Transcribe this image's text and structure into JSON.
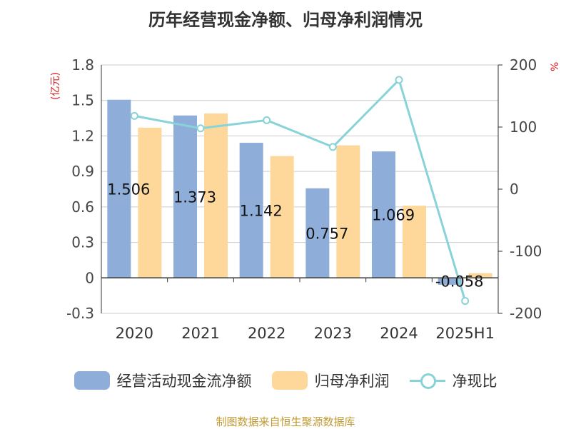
{
  "title": "历年经营现金净额、归母净利润情况",
  "source": "制图数据来自恒生聚源数据库",
  "colors": {
    "cashflow": "#8eaed9",
    "profit": "#fdd89a",
    "ratio": "#88d3d9",
    "unit": "#e0191d",
    "source": "#c09a32"
  },
  "chart_data": {
    "type": "bar",
    "categories": [
      "2020",
      "2021",
      "2022",
      "2023",
      "2024",
      "2025H1"
    ],
    "y_left": {
      "unit": "(亿元)",
      "range": [
        -0.3,
        1.8
      ],
      "ticks": [
        "1.8",
        "1.5",
        "1.2",
        "0.9",
        "0.6",
        "0.3",
        "0",
        "-0.3"
      ]
    },
    "y_right": {
      "unit": "%",
      "range": [
        -200,
        200
      ],
      "ticks": [
        "200",
        "100",
        "0",
        "-100",
        "-200"
      ]
    },
    "series": [
      {
        "name": "经营活动现金流净额",
        "type": "bar",
        "axis": "left",
        "values": [
          1.506,
          1.373,
          1.142,
          0.757,
          1.069,
          -0.058
        ],
        "labels": [
          "1.506",
          "1.373",
          "1.142",
          "0.757",
          "1.069",
          "-0.058"
        ]
      },
      {
        "name": "归母净利润",
        "type": "bar",
        "axis": "left",
        "values": [
          1.27,
          1.39,
          1.03,
          1.12,
          0.61,
          0.04
        ]
      },
      {
        "name": "净现比",
        "type": "line",
        "axis": "right",
        "values": [
          118,
          98,
          111,
          68,
          176,
          -180
        ]
      }
    ],
    "grid": true,
    "legend": "bottom"
  }
}
